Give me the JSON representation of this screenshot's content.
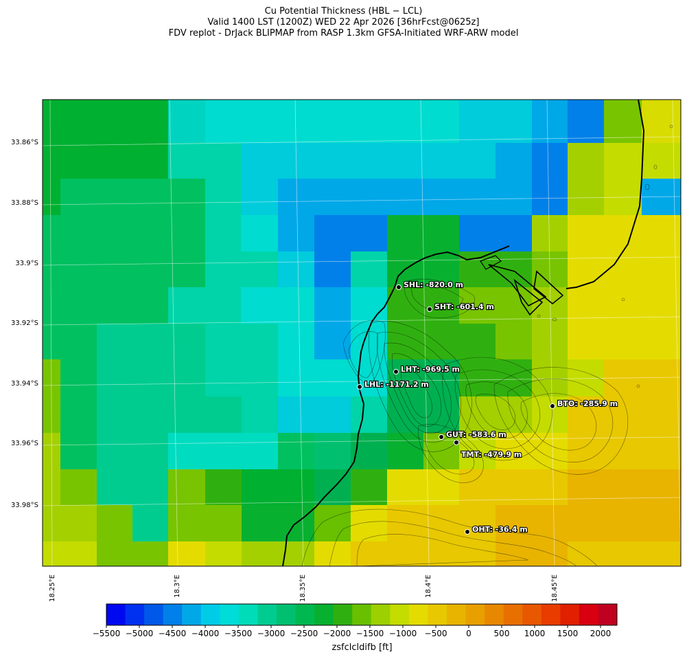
{
  "title": {
    "line1": "Cu Potential Thickness (HBL − LCL)",
    "line2": "Valid 1400 LST (1200Z) WED 22 Apr 2026 [36hrFcst@0625z]",
    "line3": "FDV replot - DrJack BLIPMAP from RASP 1.3km GFSA-Initiated WRF-ARW model"
  },
  "lat_labels": [
    "33.86°S",
    "33.88°S",
    "33.9°S",
    "33.92°S",
    "33.94°S",
    "33.96°S",
    "33.98°S"
  ],
  "lon_labels": [
    "18.25°E",
    "18.3°E",
    "18.35°E",
    "18.4°E",
    "18.45°E"
  ],
  "stations": [
    {
      "label": "SHL: -820.0 m"
    },
    {
      "label": "SHT: -601.4 m"
    },
    {
      "label": "LHT: -969.5 m"
    },
    {
      "label": "LHL: -1171.2 m"
    },
    {
      "label": "BTO: -285.9 m"
    },
    {
      "label": "GUT: -583.6 m"
    },
    {
      "label": "TMT: -479.9 m"
    },
    {
      "label": "OHT: -36.4 m"
    }
  ],
  "colorbar": {
    "label": "zsfclcldifb [ft]",
    "ticks": [
      "−5500",
      "−5000",
      "−4500",
      "−4000",
      "−3500",
      "−3000",
      "−2500",
      "−2000",
      "−1500",
      "−1000",
      "−500",
      "0",
      "500",
      "1000",
      "1500",
      "2000"
    ],
    "colors": [
      "#0008f0",
      "#0030f0",
      "#0058e8",
      "#0080e8",
      "#00a8e8",
      "#00cce8",
      "#00dcd8",
      "#00dcb8",
      "#00cc90",
      "#00c070",
      "#00b850",
      "#08b030",
      "#30b010",
      "#68c000",
      "#9cd000",
      "#c4dc00",
      "#e4dc00",
      "#e8c800",
      "#e8b400",
      "#e8a000",
      "#e88800",
      "#e87000",
      "#e85800",
      "#e83c00",
      "#e02000",
      "#d80010",
      "#c00020"
    ]
  },
  "grid_rows": [
    [
      7,
      7,
      7,
      9,
      9,
      9,
      9,
      9,
      9,
      9,
      9,
      9,
      9,
      9,
      9,
      6,
      6,
      4,
      4,
      10,
      12,
      12,
      12,
      12
    ],
    [
      10,
      10,
      10,
      11,
      11,
      11,
      11,
      12,
      12,
      12,
      12,
      12,
      12,
      12,
      12,
      10,
      8,
      7,
      7,
      11,
      12,
      12,
      12,
      12
    ],
    [
      10,
      10,
      10,
      11,
      11,
      11,
      11,
      11,
      11,
      11,
      11,
      11,
      11,
      11,
      11,
      11,
      11,
      11,
      11,
      11,
      12,
      12,
      12,
      12
    ],
    [
      11,
      11,
      11,
      11,
      11,
      11,
      11,
      11,
      11,
      11,
      11,
      11,
      11,
      11,
      11,
      10,
      13,
      13,
      13,
      13,
      12,
      12,
      12,
      12
    ],
    [
      11,
      11,
      11,
      11,
      11,
      11,
      11,
      11,
      11,
      11,
      11,
      11,
      11,
      11,
      11,
      11,
      13,
      13,
      13,
      13,
      12,
      12,
      12,
      12
    ],
    [
      11,
      11,
      11,
      11,
      11,
      11,
      11,
      12,
      12,
      12,
      12,
      12,
      13,
      13,
      13,
      13,
      13,
      13,
      13,
      13,
      12,
      12,
      12,
      12
    ],
    [
      11,
      11,
      11,
      11,
      11,
      11,
      11,
      12,
      12,
      12,
      12,
      12,
      13,
      13,
      13,
      13,
      13,
      13,
      13,
      13,
      12,
      12,
      12,
      12
    ],
    [
      11,
      11,
      11,
      11,
      11,
      11,
      11,
      11,
      12,
      12,
      12,
      12,
      13,
      13,
      13,
      13,
      13,
      13,
      13,
      13,
      12,
      12,
      12,
      12
    ],
    [
      11,
      11,
      11,
      11,
      11,
      11,
      11,
      11,
      12,
      12,
      12,
      12,
      13,
      13,
      13,
      13,
      13,
      13,
      13,
      13,
      12,
      12,
      12,
      12
    ],
    [
      11,
      11,
      11,
      11,
      11,
      11,
      11,
      11,
      11,
      12,
      12,
      12,
      13,
      13,
      13,
      13,
      13,
      13,
      13,
      13,
      12,
      12,
      12,
      12
    ],
    [
      11,
      11,
      11,
      11,
      11,
      11,
      11,
      11,
      11,
      12,
      12,
      12,
      13,
      13,
      13,
      13,
      13,
      13,
      13,
      13,
      12,
      12,
      12,
      12
    ],
    [
      11,
      11,
      11,
      11,
      11,
      11,
      11,
      11,
      11,
      12,
      12,
      12,
      13,
      13,
      13,
      13,
      13,
      13,
      13,
      13,
      12,
      12,
      12,
      12
    ],
    [
      11,
      11,
      11,
      11,
      11,
      11,
      11,
      11,
      11,
      12,
      12,
      12,
      13,
      13,
      13,
      13,
      13,
      13,
      13,
      13,
      12,
      12,
      12,
      12
    ]
  ]
}
